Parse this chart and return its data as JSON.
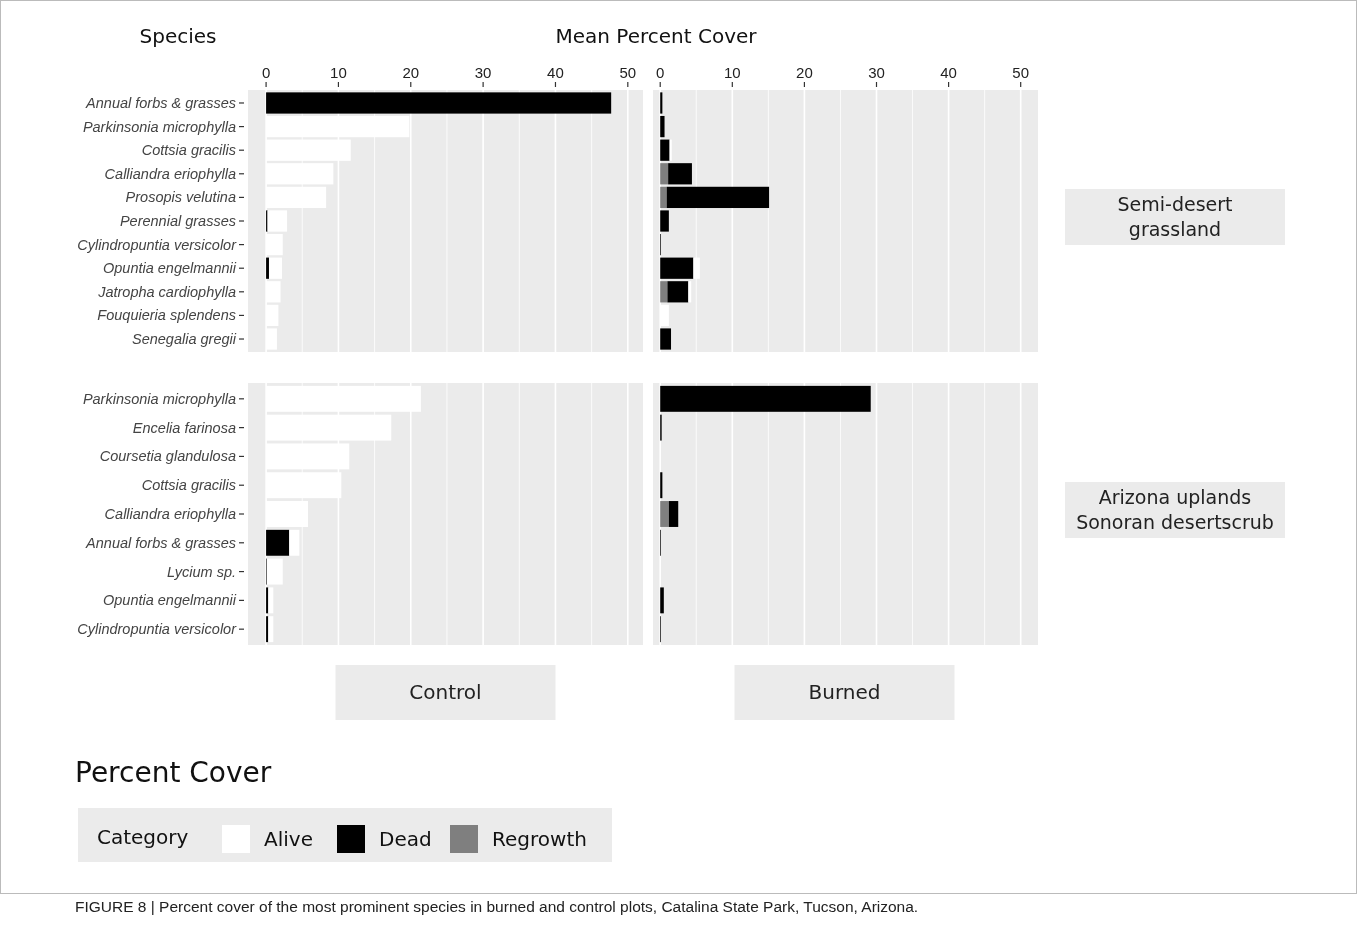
{
  "chart_data": [
    {
      "type": "bar",
      "orientation": "horizontal",
      "stacked": true,
      "title": "Percent Cover",
      "xlabel": "Mean Percent Cover",
      "ylabel": "Species",
      "legend": "bottom",
      "legend_title": "Category",
      "grid": "x",
      "annotations": [
        "FIGURE 8 | Percent cover of the most prominent species in burned and control plots, Catalina State Park, Tucson, Arizona."
      ],
      "categories": [
        "Annual forbs & grasses",
        "Parkinsonia microphylla",
        "Cottsia gracilis",
        "Calliandra eriophylla",
        "Prosopis velutina",
        "Perennial grasses",
        "Cylindropuntia versicolor",
        "Opuntia engelmannii",
        "Jatropha cardiophylla",
        "Fouquieria splendens",
        "Senegalia gregii"
      ],
      "series": [
        {
          "name": "Regrowth",
          "color": "#7f7f7f",
          "values": [
            0,
            0,
            0,
            0,
            0,
            0,
            0,
            0,
            0,
            0,
            0
          ]
        },
        {
          "name": "Dead",
          "color": "#000000",
          "values": [
            47.7,
            0,
            0,
            0,
            0,
            0.2,
            0,
            0.4,
            0,
            0,
            0
          ]
        },
        {
          "name": "Alive",
          "color": "#ffffff",
          "values": [
            0,
            19.8,
            11.7,
            9.3,
            8.3,
            2.7,
            2.3,
            1.8,
            2.0,
            1.7,
            1.5
          ]
        }
      ],
      "xlim": [
        -2.5,
        52.1
      ],
      "xticks": [
        0,
        {
          "value": 5,
          "label": null
        },
        10,
        {
          "value": 15,
          "label": null
        },
        20,
        {
          "value": 25,
          "label": null
        },
        30,
        {
          "value": 35,
          "label": null
        },
        40,
        {
          "value": 45,
          "label": null
        },
        50
      ]
    },
    {
      "type": "bar",
      "orientation": "horizontal",
      "stacked": true,
      "grid": "x",
      "tick_labels": "x",
      "annotations": [
        "Semi-desert grassland"
      ],
      "categories": [
        null,
        null,
        null,
        null,
        null,
        null,
        null,
        null,
        null,
        null,
        null
      ],
      "series": [
        {
          "color": "#7f7f7f",
          "values": [
            0,
            0,
            0,
            1.1,
            0.9,
            0,
            0,
            0,
            1.0,
            0,
            0
          ]
        },
        {
          "color": "#000000",
          "values": [
            0.3,
            0.6,
            1.3,
            3.3,
            14.2,
            1.2,
            0.1,
            4.6,
            2.9,
            0,
            1.5
          ]
        },
        {
          "color": "#ffffff",
          "values": [
            0,
            0,
            0.3,
            0,
            0,
            0,
            0,
            0.9,
            0.4,
            1.2,
            0
          ]
        }
      ],
      "xlim": [
        -1.0,
        52.4
      ],
      "xticks": [
        0,
        {
          "value": 5,
          "label": null
        },
        10,
        {
          "value": 15,
          "label": null
        },
        20,
        {
          "value": 25,
          "label": null
        },
        30,
        {
          "value": 35,
          "label": null
        },
        40,
        {
          "value": 45,
          "label": null
        },
        50
      ]
    },
    {
      "type": "bar",
      "orientation": "horizontal",
      "stacked": true,
      "grid": "x",
      "tick_labels": "y",
      "annotations": [
        "Control"
      ],
      "categories": [
        "Parkinsonia microphylla",
        "Encelia farinosa",
        "Coursetia glandulosa",
        "Cottsia gracilis",
        "Calliandra eriophylla",
        "Annual forbs & grasses",
        "Lycium sp.",
        "Opuntia engelmannii",
        "Cylindropuntia versicolor"
      ],
      "series": [
        {
          "color": "#7f7f7f",
          "values": [
            0,
            0,
            0,
            0,
            0,
            0,
            0,
            0,
            0
          ]
        },
        {
          "color": "#000000",
          "values": [
            0,
            0,
            0,
            0,
            0,
            3.2,
            0.1,
            0.3,
            0.3
          ]
        },
        {
          "color": "#ffffff",
          "values": [
            21.4,
            17.3,
            11.5,
            10.4,
            5.8,
            1.4,
            2.2,
            0.7,
            0.7
          ]
        }
      ],
      "xlim": [
        -2.5,
        52.1
      ],
      "xticks": [
        0,
        {
          "value": 5,
          "label": null
        },
        10,
        {
          "value": 15,
          "label": null
        },
        20,
        {
          "value": 25,
          "label": null
        },
        30,
        {
          "value": 35,
          "label": null
        },
        40,
        {
          "value": 45,
          "label": null
        },
        50
      ]
    },
    {
      "type": "bar",
      "orientation": "horizontal",
      "stacked": true,
      "grid": "x",
      "tick_labels": false,
      "annotations": [
        "Burned",
        "Arizona uplands Sonoran desertscrub"
      ],
      "categories": [
        null,
        null,
        null,
        null,
        null,
        null,
        null,
        null,
        null
      ],
      "series": [
        {
          "color": "#7f7f7f",
          "values": [
            0,
            0,
            0,
            0,
            1.2,
            0,
            0,
            0,
            0
          ]
        },
        {
          "color": "#000000",
          "values": [
            29.2,
            0.2,
            0,
            0.3,
            1.3,
            0.1,
            0,
            0.5,
            0.1
          ]
        },
        {
          "color": "#ffffff",
          "values": [
            0,
            0,
            0,
            0,
            0,
            0,
            0,
            0,
            0
          ]
        }
      ],
      "xlim": [
        -1.0,
        52.4
      ],
      "xticks": [
        0,
        {
          "value": 5,
          "label": null
        },
        10,
        {
          "value": 15,
          "label": null
        },
        20,
        {
          "value": 25,
          "label": null
        },
        30,
        {
          "value": 35,
          "label": null
        },
        40,
        {
          "value": 45,
          "label": null
        },
        50
      ]
    }
  ]
}
